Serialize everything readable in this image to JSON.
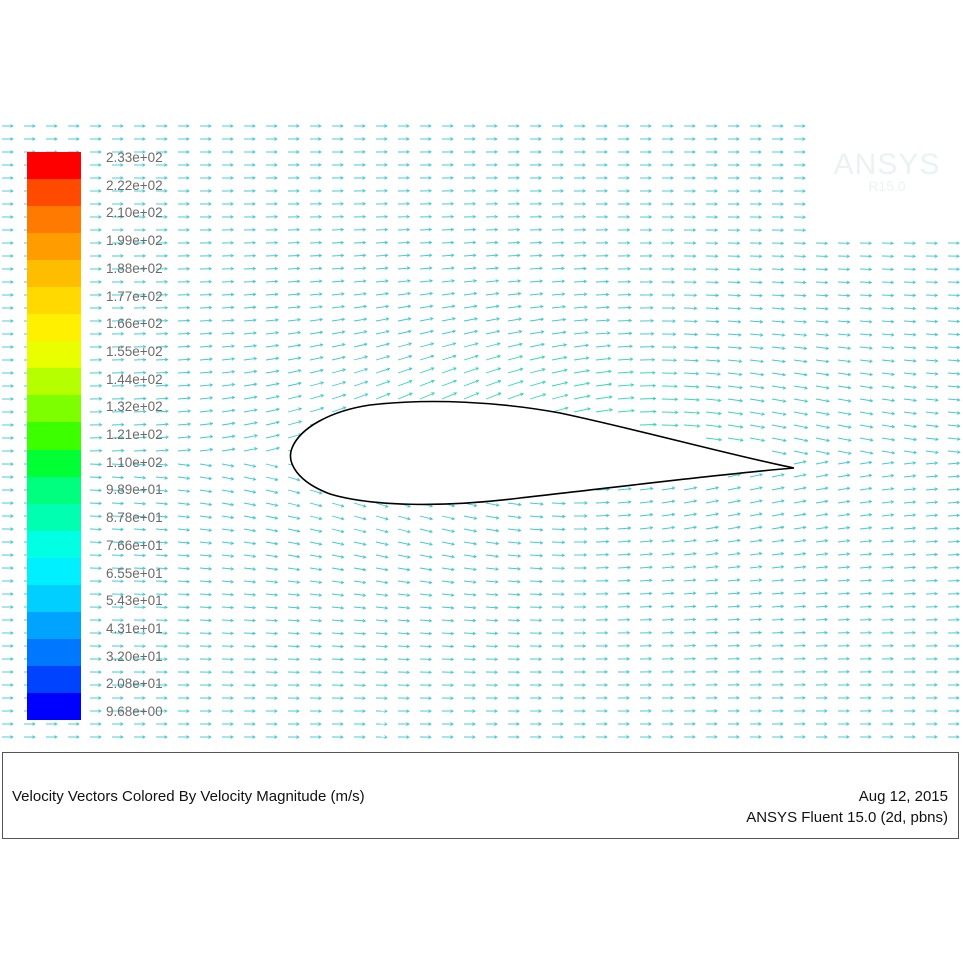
{
  "plot": {
    "vector_color": "#3fc9d0",
    "vector_color_fast": "#33d6b8",
    "airfoil_outline_color": "#000000"
  },
  "colorbar": {
    "labels": [
      "2.33e+02",
      "2.22e+02",
      "2.10e+02",
      "1.99e+02",
      "1.88e+02",
      "1.77e+02",
      "1.66e+02",
      "1.55e+02",
      "1.44e+02",
      "1.32e+02",
      "1.21e+02",
      "1.10e+02",
      "9.89e+01",
      "8.78e+01",
      "7.66e+01",
      "6.55e+01",
      "5.43e+01",
      "4.31e+01",
      "3.20e+01",
      "2.08e+01",
      "9.68e+00"
    ],
    "colors": [
      "#ff0000",
      "#ff4a00",
      "#ff7a00",
      "#ff9c00",
      "#ffbd00",
      "#ffd900",
      "#fff000",
      "#e9ff00",
      "#b6ff00",
      "#7dff00",
      "#3cff00",
      "#00ff33",
      "#00ff7e",
      "#00ffb1",
      "#00ffe3",
      "#00f0ff",
      "#00cfff",
      "#00a4ff",
      "#0077ff",
      "#0043ff",
      "#0000ff"
    ]
  },
  "watermark": {
    "line1": "ANSYS",
    "line2": "R15.0"
  },
  "caption": {
    "title": "Velocity Vectors Colored By Velocity Magnitude (m/s)",
    "date": "Aug 12, 2015",
    "software": "ANSYS Fluent 15.0 (2d, pbns)"
  }
}
